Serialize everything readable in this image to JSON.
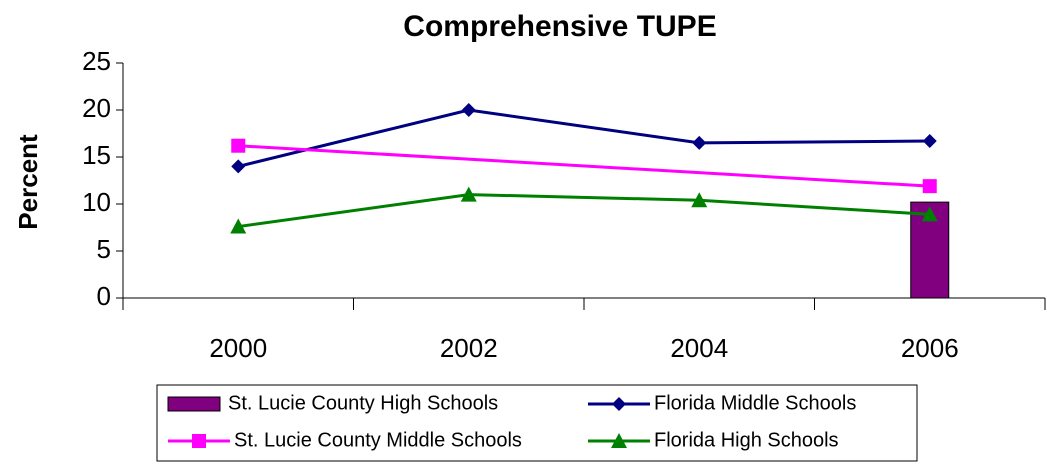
{
  "chart_data": {
    "type": "line",
    "title": "Comprehensive TUPE",
    "y_label": "Percent",
    "categories": [
      "2000",
      "2002",
      "2004",
      "2006"
    ],
    "ylim": [
      0,
      25
    ],
    "yticks": [
      0,
      5,
      10,
      15,
      20,
      25
    ],
    "connect_gaps": true,
    "series": [
      {
        "name": "St. Lucie County High Schools",
        "type": "bar",
        "color": "#800080",
        "values": [
          null,
          null,
          null,
          10.2
        ]
      },
      {
        "name": "Florida Middle Schools",
        "type": "line",
        "marker": "diamond",
        "color": "#000080",
        "values": [
          14,
          20,
          16.5,
          16.7
        ]
      },
      {
        "name": "St. Lucie County Middle Schools",
        "type": "line",
        "marker": "square",
        "color": "#FF00FF",
        "values": [
          16.2,
          null,
          null,
          11.9
        ]
      },
      {
        "name": "Florida High Schools",
        "type": "line",
        "marker": "triangle",
        "color": "#008000",
        "values": [
          7.6,
          11,
          10.4,
          8.9
        ]
      }
    ]
  }
}
